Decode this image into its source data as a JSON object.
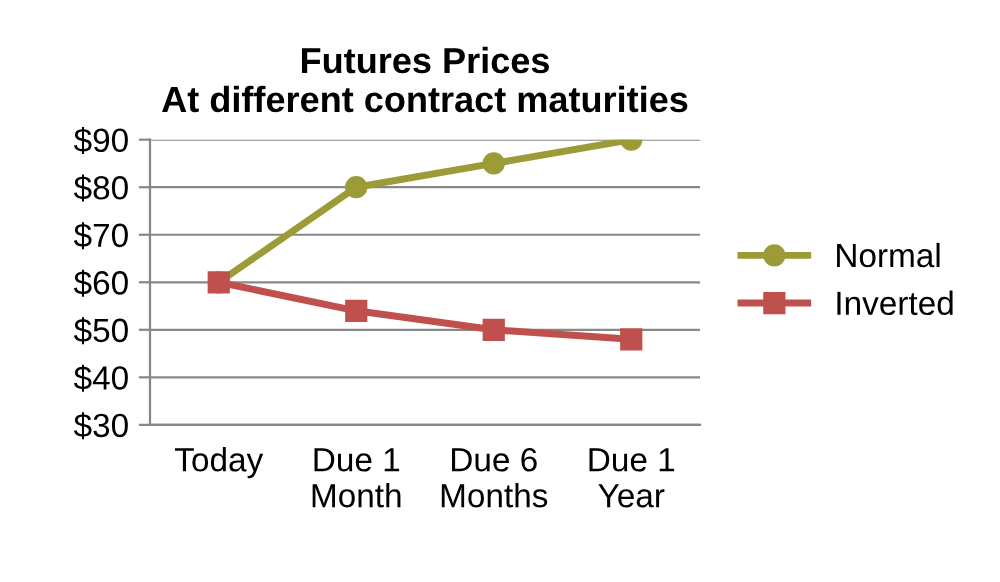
{
  "chart_data": {
    "type": "line",
    "title": "Futures Prices\nAt different contract maturities",
    "categories": [
      "Today",
      "Due 1\nMonth",
      "Due 6\nMonths",
      "Due 1\nYear"
    ],
    "series": [
      {
        "name": "Normal",
        "color": "#9b9b38",
        "marker": "circle",
        "values": [
          60,
          80,
          85,
          90
        ]
      },
      {
        "name": "Inverted",
        "color": "#c0504d",
        "marker": "square",
        "values": [
          60,
          54,
          50,
          48
        ]
      }
    ],
    "ylim": [
      30,
      90
    ],
    "yticks": [
      {
        "value": 30,
        "label": "$30"
      },
      {
        "value": 40,
        "label": "$40"
      },
      {
        "value": 50,
        "label": "$50"
      },
      {
        "value": 60,
        "label": "$60"
      },
      {
        "value": 70,
        "label": "$70"
      },
      {
        "value": 80,
        "label": "$80"
      },
      {
        "value": 90,
        "label": "$90"
      }
    ],
    "grid": "y",
    "legend": "right"
  }
}
